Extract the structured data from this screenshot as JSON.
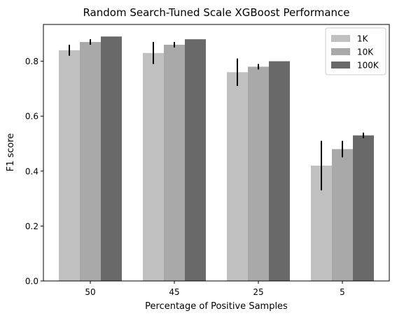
{
  "chart_data": {
    "type": "bar",
    "title": "Random Search-Tuned Scale XGBoost Performance",
    "xlabel": "Percentage of Positive Samples",
    "ylabel": "F1 score",
    "categories": [
      "50",
      "45",
      "25",
      "5"
    ],
    "ylim": [
      0,
      0.92
    ],
    "yticks": [
      0.0,
      0.2,
      0.4,
      0.6,
      0.8
    ],
    "ytick_labels": [
      "0.0",
      "0.2",
      "0.4",
      "0.6",
      "0.8"
    ],
    "grid": false,
    "legend_position": "top-right",
    "series": [
      {
        "name": "1K",
        "color": "#c0c0c0",
        "values": [
          0.84,
          0.83,
          0.76,
          0.42
        ],
        "errors": [
          0.02,
          0.04,
          0.05,
          0.09
        ]
      },
      {
        "name": "10K",
        "color": "#a9a9a9",
        "values": [
          0.87,
          0.86,
          0.78,
          0.48
        ],
        "errors": [
          0.01,
          0.01,
          0.01,
          0.03
        ]
      },
      {
        "name": "100K",
        "color": "#696969",
        "values": [
          0.89,
          0.88,
          0.8,
          0.53
        ],
        "errors": [
          0.0,
          0.0,
          0.0,
          0.01
        ]
      }
    ]
  }
}
